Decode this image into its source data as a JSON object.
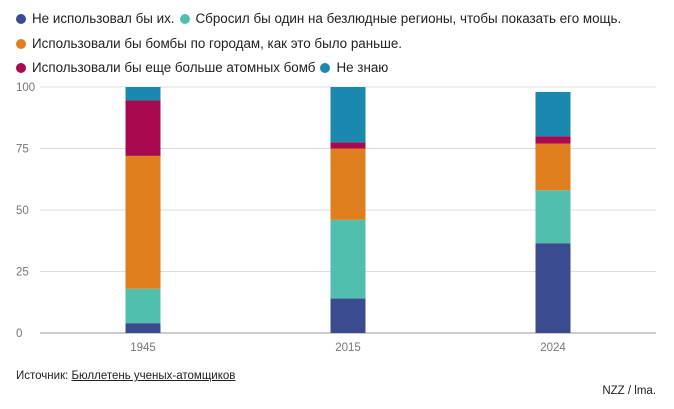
{
  "legend": {
    "items": [
      {
        "label": "Не использовал бы их.",
        "color": "#3a4c8f"
      },
      {
        "label": "Сбросил бы один на безлюдные регионы, чтобы показать его мощь.",
        "color": "#52bfae"
      },
      {
        "label": "Использовали бы бомбы по городам, как это было раньше.",
        "color": "#e07f1f"
      },
      {
        "label": "Использовали бы еще больше атомных бомб",
        "color": "#a8094f"
      },
      {
        "label": "Не знаю",
        "color": "#1b88b0"
      }
    ]
  },
  "chart_data": {
    "type": "bar",
    "stacked": true,
    "categories": [
      "1945",
      "2015",
      "2024"
    ],
    "series": [
      {
        "name": "Не использовал бы их.",
        "color": "#3a4c8f",
        "values": [
          4,
          14,
          36.5
        ]
      },
      {
        "name": "Сбросил бы один на безлюдные регионы, чтобы показать его мощь.",
        "color": "#52bfae",
        "values": [
          14,
          32,
          21.5
        ]
      },
      {
        "name": "Использовали бы бомбы по городам, как это было раньше.",
        "color": "#e07f1f",
        "values": [
          54,
          29,
          19
        ]
      },
      {
        "name": "Использовали бы еще больше атомных бомб",
        "color": "#a8094f",
        "values": [
          22.5,
          2.5,
          3
        ]
      },
      {
        "name": "Не знаю",
        "color": "#1b88b0",
        "values": [
          5.5,
          22.5,
          18
        ]
      }
    ],
    "ylim": [
      0,
      100
    ],
    "yticks": [
      0,
      25,
      50,
      75,
      100
    ],
    "grid": true,
    "legend_position": "top"
  },
  "footer": {
    "source_prefix": "Источник: ",
    "source_link": "Бюллетень ученых-атомщиков",
    "credit": "NZZ / lma."
  }
}
